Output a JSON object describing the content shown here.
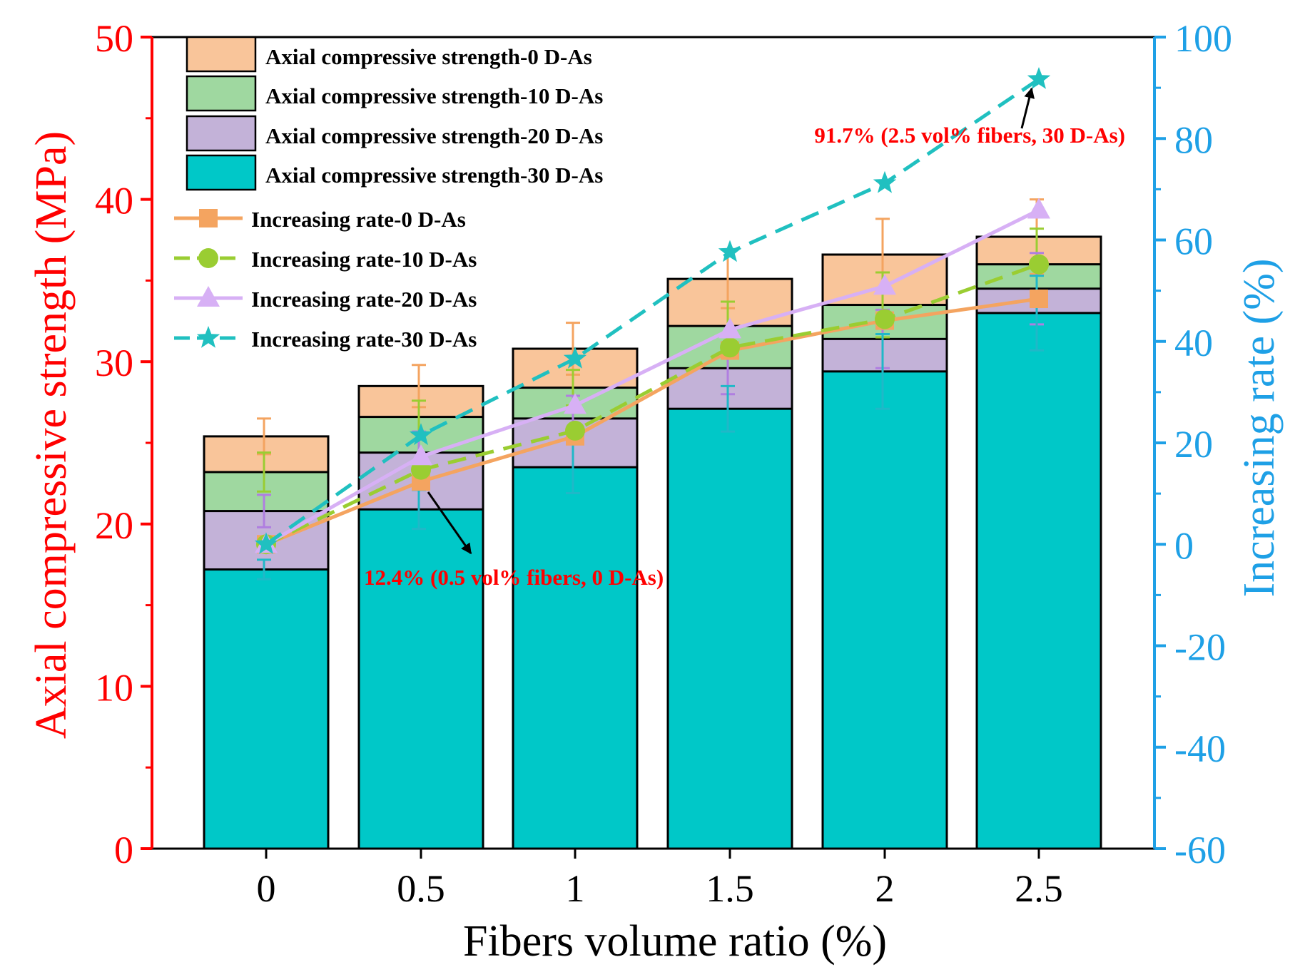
{
  "chart_data": {
    "type": "bar",
    "subtype": "stacked-overlay-bar-with-dual-axis-lines",
    "categories": [
      "0",
      "0.5",
      "1",
      "1.5",
      "2",
      "2.5"
    ],
    "xlabel": "Fibers volume ratio (%)",
    "ylabel_left": "Axial compressive strength (MPa)",
    "ylabel_right": "Increasing rate (%)",
    "ylim_left": [
      0,
      50
    ],
    "ylim_right": [
      -60,
      100
    ],
    "yticks_left": [
      "0",
      "10",
      "20",
      "30",
      "40",
      "50"
    ],
    "yticks_right": [
      "-60",
      "-40",
      "-20",
      "0",
      "20",
      "40",
      "60",
      "80",
      "100"
    ],
    "colors": {
      "left_axis": "#ff0000",
      "right_axis": "#1ea0e6",
      "bar_0": "#f9c59a",
      "bar_10": "#9fd8a0",
      "bar_20": "#c3b2d8",
      "bar_30": "#00c8c8",
      "line_0": "#f4a460",
      "line_10": "#9acd32",
      "line_20": "#d7b0f5",
      "line_30": "#20c0c0",
      "annotation": "#ff0000"
    },
    "bars": [
      {
        "name": "Axial compressive strength-0 D-As",
        "color_key": "bar_0",
        "values": [
          25.4,
          28.5,
          30.8,
          35.1,
          36.6,
          37.7
        ],
        "errors": [
          1.1,
          1.3,
          1.6,
          1.8,
          2.2,
          2.3
        ]
      },
      {
        "name": "Axial compressive strength-10 D-As",
        "color_key": "bar_10",
        "values": [
          23.2,
          26.6,
          28.4,
          32.2,
          33.5,
          36.0
        ],
        "errors": [
          1.2,
          1.0,
          1.1,
          1.5,
          2.0,
          2.2
        ]
      },
      {
        "name": "Axial compressive strength-20 D-As",
        "color_key": "bar_20",
        "values": [
          20.8,
          24.4,
          26.5,
          29.6,
          31.4,
          34.5
        ],
        "errors": [
          1.0,
          1.3,
          1.4,
          1.6,
          1.8,
          2.2
        ]
      },
      {
        "name": "Axial compressive strength-30 D-As",
        "color_key": "bar_30",
        "values": [
          17.2,
          20.9,
          23.5,
          27.1,
          29.4,
          33.0
        ],
        "errors": [
          0.6,
          1.2,
          1.6,
          1.4,
          2.3,
          2.3
        ]
      }
    ],
    "lines": [
      {
        "name": "Increasing rate-0 D-As",
        "color_key": "line_0",
        "marker": "square",
        "dash": "solid",
        "values": [
          0,
          12.4,
          21.3,
          38.2,
          44.1,
          48.4
        ]
      },
      {
        "name": "Increasing rate-10 D-As",
        "color_key": "line_10",
        "marker": "circle",
        "dash": "dashed",
        "values": [
          0,
          14.7,
          22.4,
          38.8,
          44.4,
          55.2
        ]
      },
      {
        "name": "Increasing rate-20 D-As",
        "color_key": "line_20",
        "marker": "triangle",
        "dash": "solid",
        "values": [
          0,
          17.3,
          27.4,
          42.3,
          50.9,
          65.9
        ]
      },
      {
        "name": "Increasing rate-30 D-As",
        "color_key": "line_30",
        "marker": "star",
        "dash": "dashed",
        "values": [
          0,
          21.5,
          36.6,
          57.6,
          71.2,
          91.7
        ]
      }
    ],
    "annotations": [
      {
        "text": "91.7% (2.5 vol% fibers, 30 D-As)",
        "category": "2.5",
        "y_right": 91.7
      },
      {
        "text": "12.4% (0.5 vol% fibers, 0 D-As)",
        "category": "0.5",
        "y_right": 12.4
      }
    ],
    "legend_position": "top-left"
  }
}
